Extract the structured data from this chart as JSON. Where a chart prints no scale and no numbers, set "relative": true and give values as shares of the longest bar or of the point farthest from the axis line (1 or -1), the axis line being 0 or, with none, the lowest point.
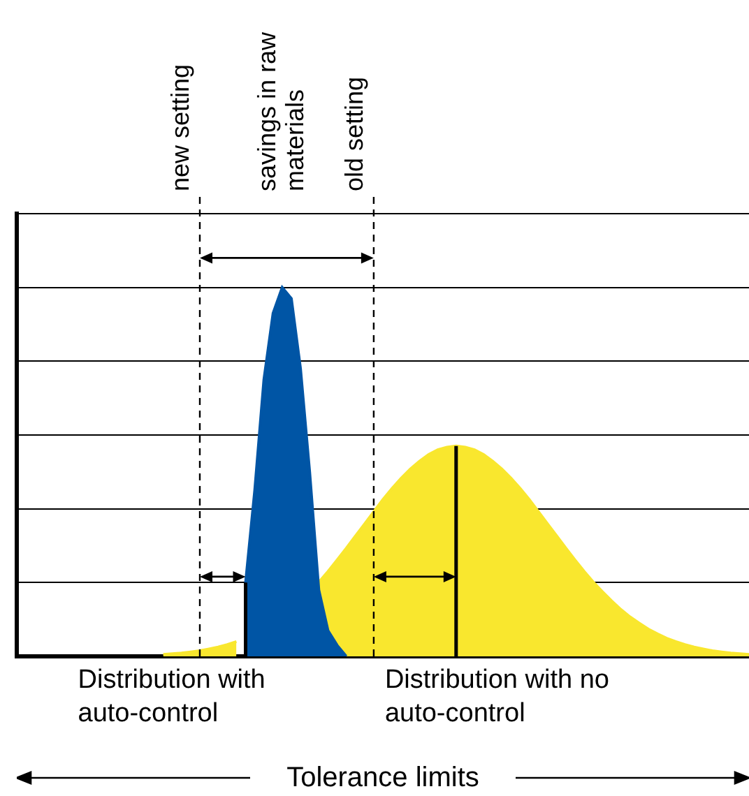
{
  "chart_data": {
    "type": "area",
    "relative": true,
    "xlabel": "Tolerance limits",
    "tick_labels": false,
    "grid": "y",
    "categories": [
      null,
      null,
      null,
      null,
      null,
      null,
      null,
      null,
      null,
      null,
      null,
      null,
      null,
      null,
      null,
      null,
      null,
      null,
      null,
      null,
      null,
      null,
      null,
      null,
      null,
      null,
      null,
      null,
      null,
      null,
      null,
      null,
      null,
      null,
      null,
      null,
      null,
      null,
      null,
      null,
      null,
      null,
      null,
      null,
      null,
      null,
      null,
      null,
      null,
      null,
      null,
      null,
      null,
      null,
      null,
      null,
      null,
      null,
      null,
      null,
      null,
      null,
      null,
      null,
      null,
      null,
      null,
      null,
      null,
      null,
      null,
      null,
      null,
      null,
      null,
      null,
      null,
      null,
      null,
      null,
      null
    ],
    "series": [
      {
        "name": "Distribution with auto-control",
        "color": "#0055a5",
        "values": [
          null,
          null,
          null,
          null,
          null,
          null,
          null,
          null,
          null,
          null,
          null,
          null,
          null,
          null,
          null,
          null,
          null,
          null,
          null,
          null,
          null,
          null,
          null,
          null,
          null,
          0.2,
          0.45,
          0.75,
          0.93,
          1,
          0.97,
          0.78,
          0.5,
          0.18,
          0.07,
          0.03,
          0,
          null,
          null,
          null,
          null,
          null,
          null,
          null,
          null,
          null,
          null,
          null,
          null,
          null,
          null,
          null,
          null,
          null,
          null,
          null,
          null,
          null,
          null,
          null,
          null,
          null,
          null,
          null,
          null,
          null,
          null,
          null,
          null,
          null,
          null,
          null,
          null,
          null,
          null,
          null,
          null,
          null,
          null,
          null,
          null
        ]
      },
      {
        "name": "Distribution with no auto-control",
        "color": "#f9e72e",
        "values": [
          null,
          null,
          null,
          null,
          null,
          null,
          null,
          null,
          null,
          null,
          null,
          null,
          null,
          null,
          null,
          null,
          0.005,
          0.007,
          0.009,
          0.012,
          0.015,
          0.02,
          0.025,
          0.032,
          0.04,
          null,
          null,
          null,
          null,
          null,
          null,
          null,
          null,
          0.201,
          0.23,
          0.261,
          0.293,
          0.326,
          0.359,
          0.392,
          0.425,
          0.455,
          0.483,
          0.508,
          0.529,
          0.547,
          0.56,
          0.567,
          0.57,
          0.567,
          0.56,
          0.547,
          0.529,
          0.508,
          0.483,
          0.455,
          0.425,
          0.392,
          0.359,
          0.326,
          0.293,
          0.261,
          0.23,
          0.201,
          0.175,
          0.15,
          0.127,
          0.107,
          0.09,
          0.074,
          0.061,
          0.049,
          0.04,
          0.032,
          0.025,
          0.02,
          0.015,
          0.012,
          0.009,
          0.007,
          0.005
        ]
      }
    ],
    "annotations": [
      "new setting",
      "savings in raw materials",
      "old setting"
    ]
  }
}
